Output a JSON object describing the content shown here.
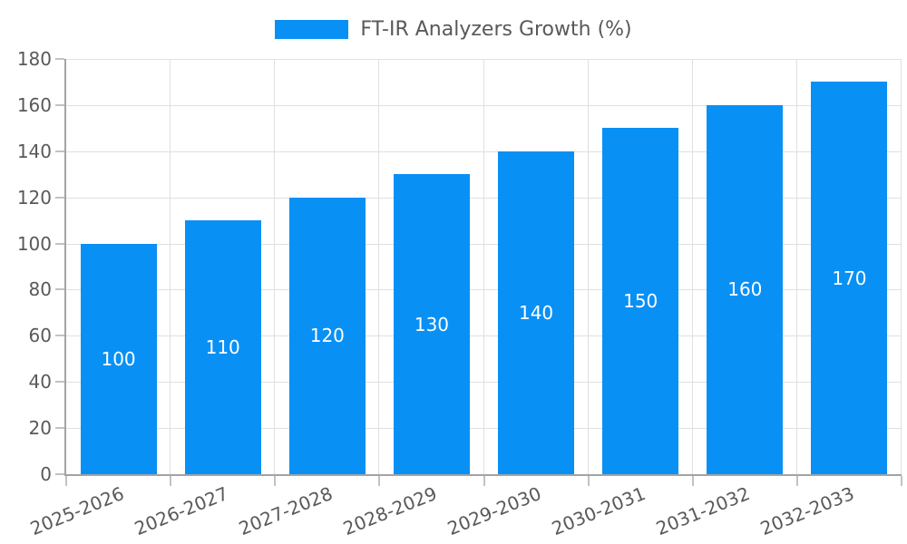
{
  "chart_data": {
    "type": "bar",
    "title": "FT-IR Analyzers Growth (%)",
    "categories": [
      "2025-2026",
      "2026-2027",
      "2027-2028",
      "2028-2029",
      "2029-2030",
      "2030-2031",
      "2031-2032",
      "2032-2033"
    ],
    "values": [
      100,
      110,
      120,
      130,
      140,
      150,
      160,
      170
    ],
    "bar_labels": [
      "100",
      "110",
      "120",
      "130",
      "140",
      "150",
      "160",
      "170"
    ],
    "xlabel": "",
    "ylabel": "",
    "ylim": [
      0,
      180
    ],
    "ytick_step": 20,
    "y_tick_labels": [
      "0",
      "20",
      "40",
      "60",
      "80",
      "100",
      "120",
      "140",
      "160",
      "180"
    ],
    "grid": true,
    "legend_position": "top-center",
    "colors": {
      "bar": "#0990f5",
      "bar_label": "#ffffff",
      "axis_text": "#595959",
      "gridline": "#e0e0e0",
      "axis_line": "#a3a3a3",
      "tick": "#c2c2c2",
      "background": "#ffffff"
    }
  },
  "legend": {
    "label": "FT-IR Analyzers Growth (%)"
  }
}
